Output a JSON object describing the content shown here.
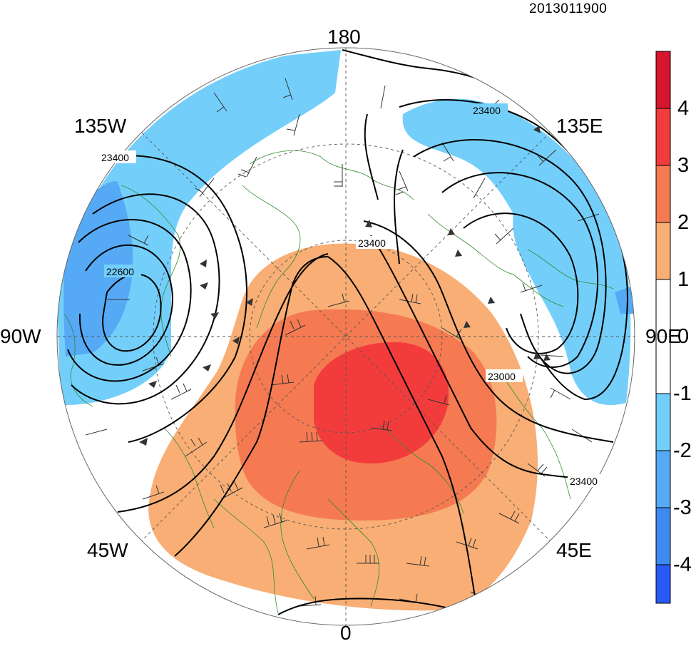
{
  "timestamp": "2013011900",
  "longitude_labels": {
    "top": "180",
    "bottom": "0",
    "left": "90W",
    "right": "90E",
    "upper_left": "135W",
    "upper_right": "135E",
    "lower_left": "45W",
    "lower_right": "45E"
  },
  "contour_labels": [
    "23400",
    "22600",
    "23400",
    "23400",
    "23000",
    "23400"
  ],
  "colorbar": {
    "tick_labels": [
      "4",
      "3",
      "2",
      "1",
      "0",
      "-1",
      "-2",
      "-3",
      "-4"
    ],
    "bins": [
      {
        "range": [
          4,
          5
        ],
        "color": "#d6162e"
      },
      {
        "range": [
          3,
          4
        ],
        "color": "#f23c3c"
      },
      {
        "range": [
          2,
          3
        ],
        "color": "#f57a52"
      },
      {
        "range": [
          1,
          2
        ],
        "color": "#f8ae74"
      },
      {
        "range": [
          0,
          1
        ],
        "color": "#ffffff"
      },
      {
        "range": [
          -1,
          0
        ],
        "color": "#ffffff"
      },
      {
        "range": [
          -2,
          -1
        ],
        "color": "#73cffa"
      },
      {
        "range": [
          -3,
          -2
        ],
        "color": "#56aaf5"
      },
      {
        "range": [
          -4,
          -3
        ],
        "color": "#3e8af2"
      },
      {
        "range": [
          -5,
          -4
        ],
        "color": "#2a5af5"
      }
    ]
  },
  "colors": {
    "coastline": "#2e8b2e",
    "contour": "#000000",
    "wind_barb": "#333333"
  },
  "chart_data": {
    "type": "heatmap",
    "projection": "polar-stereographic",
    "title": "",
    "contour_levels": [
      22600,
      23000,
      23400
    ],
    "color_range": [
      -5,
      5
    ]
  }
}
